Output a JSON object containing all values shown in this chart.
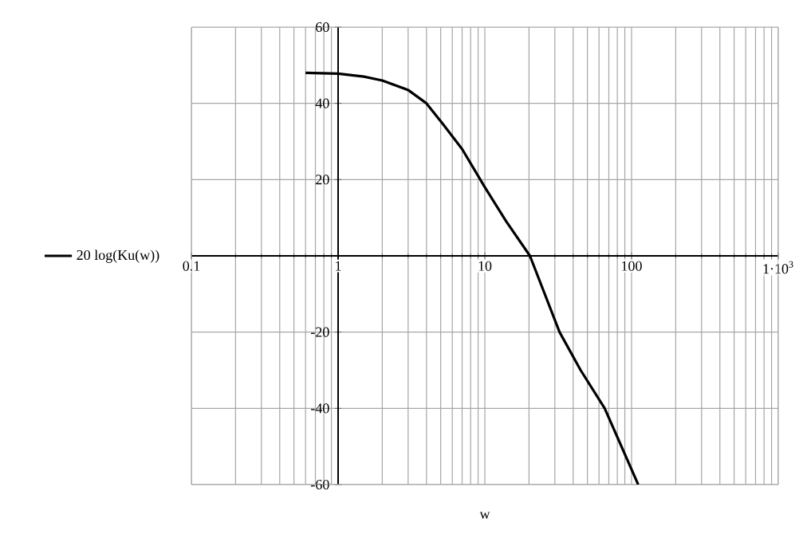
{
  "chart_data": {
    "type": "line",
    "xlabel": "w",
    "log": "x",
    "grid": true,
    "legend": "left",
    "line_style": "solid",
    "marker": "none",
    "xlim": [
      0.1,
      1000
    ],
    "ylim": [
      -60,
      60
    ],
    "xticks": [
      0.1,
      1,
      10,
      100,
      {
        "value": 1000,
        "label": "1·10$^{3}$"
      }
    ],
    "yticks": [
      -60,
      -40,
      -20,
      20,
      40,
      60
    ],
    "series": [
      {
        "name": "20 log(Ku(w))",
        "color": "#000000",
        "x": [
          0.6,
          1,
          1.5,
          2,
          3,
          4,
          5.2,
          7,
          10,
          14,
          20.3,
          32.3,
          45,
          65.6,
          111
        ],
        "values": [
          48,
          47.8,
          47,
          46,
          43.5,
          40,
          34.5,
          28,
          18,
          9,
          0,
          -20,
          -30,
          -40,
          -60
        ]
      }
    ]
  }
}
